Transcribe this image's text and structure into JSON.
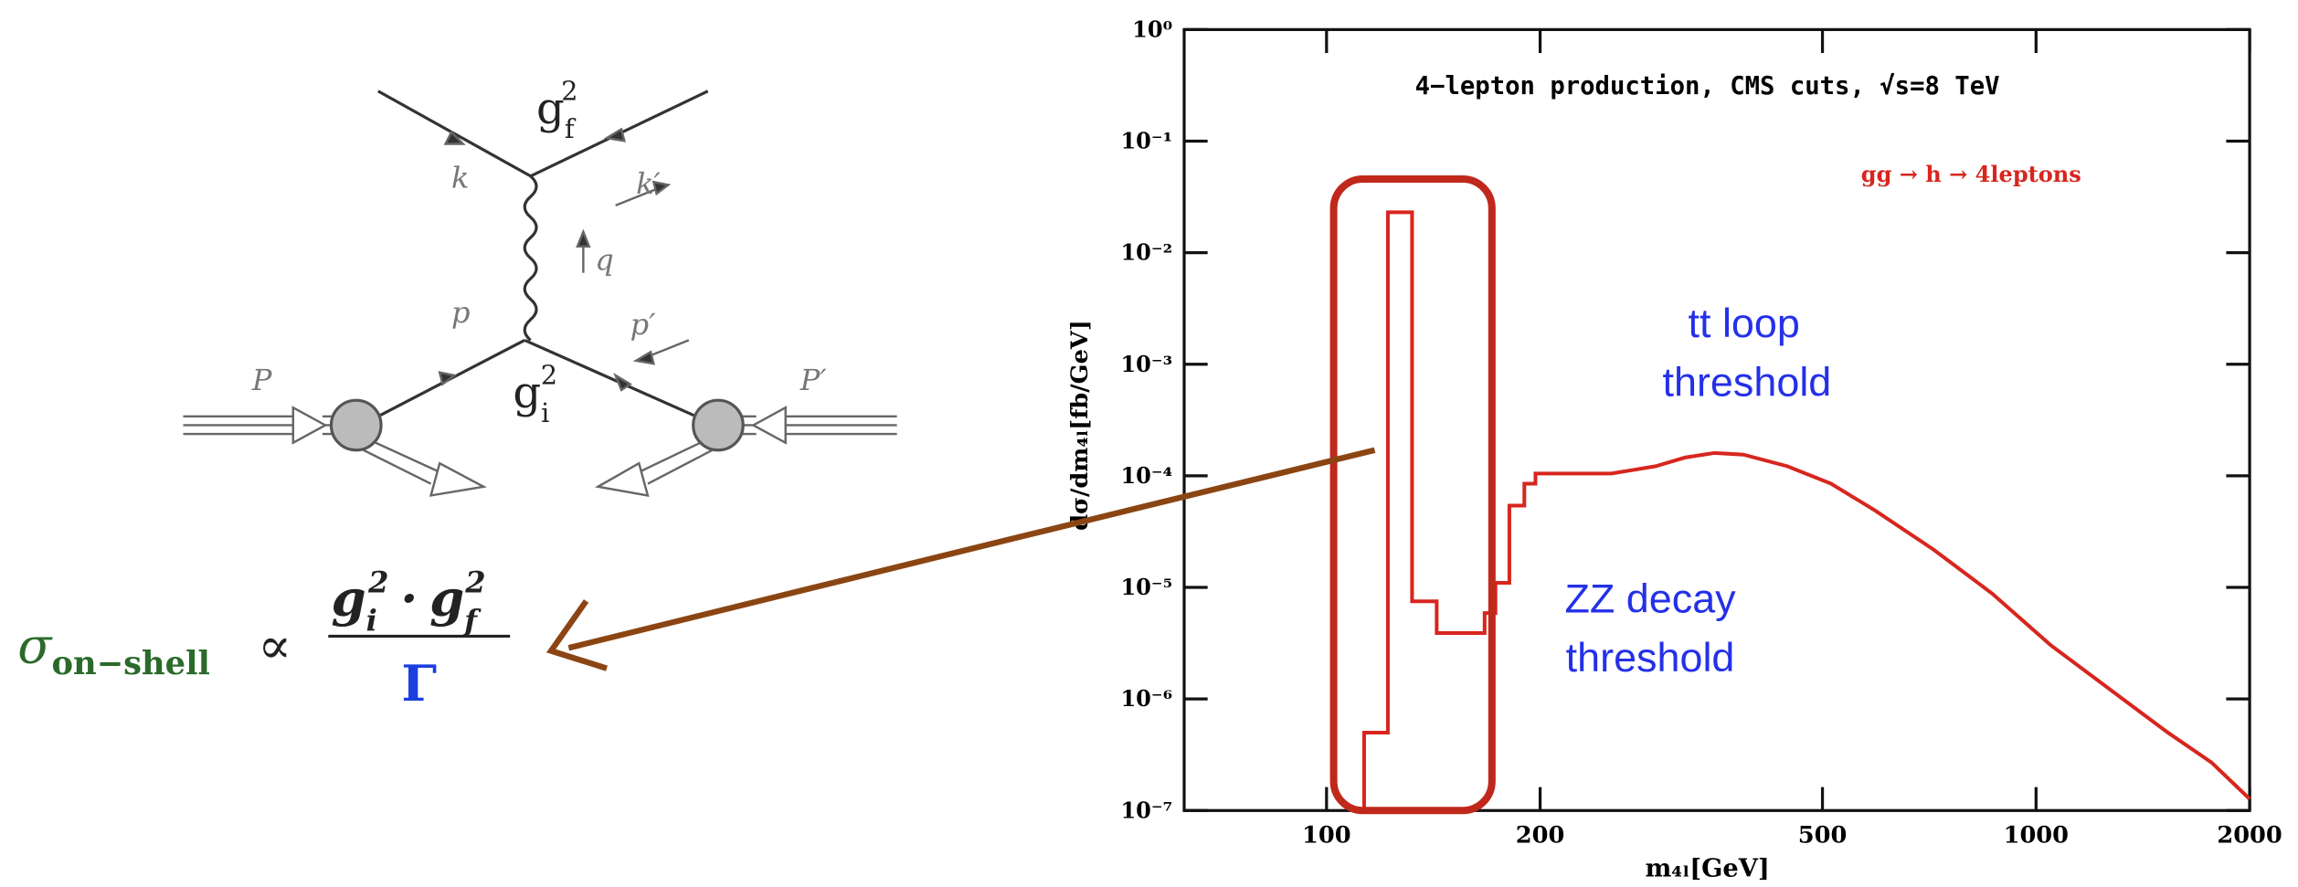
{
  "diagram": {
    "vertex_top": {
      "base": "g",
      "sub": "f",
      "sup": "2"
    },
    "vertex_bottom": {
      "base": "g",
      "sub": "i",
      "sup": "2"
    },
    "momenta": [
      "k",
      "k′",
      "q",
      "p",
      "p′",
      "P",
      "P′"
    ],
    "formula": {
      "sigma": "σ",
      "sigma_sub": "on−shell",
      "prop": "∝",
      "num_left": {
        "base": "g",
        "sub": "i",
        "sup": "2"
      },
      "dot": "·",
      "num_right": {
        "base": "g",
        "sub": "f",
        "sup": "2"
      },
      "denominator": "Γ"
    }
  },
  "chart_data": {
    "type": "line",
    "title": "4−lepton production, CMS cuts, √s=8 TeV",
    "x_label": "m₄ₗ[GeV]",
    "y_label": "dσ/dm₄ₗ[fb/GeV]",
    "annotations": [
      "tt loop",
      "threshold",
      "ZZ decay",
      "threshold"
    ],
    "x": [
      113,
      113,
      122,
      122,
      132,
      132,
      143,
      143,
      167,
      167,
      173,
      173,
      181,
      181,
      190,
      190,
      197,
      197,
      252,
      291,
      320,
      352,
      387,
      446,
      514,
      593,
      717,
      867,
      1048,
      1268,
      1534,
      1767,
      2000
    ],
    "series": [
      {
        "name": "gg → h → 4leptons",
        "color": "#d7261e",
        "values": [
          1e-07,
          5e-07,
          5e-07,
          0.023,
          0.023,
          7.5e-06,
          7.5e-06,
          3.9e-06,
          3.9e-06,
          5.9e-06,
          5.9e-06,
          1.1e-05,
          1.1e-05,
          5.4e-05,
          5.4e-05,
          8.5e-05,
          8.5e-05,
          0.000105,
          0.000105,
          0.000122,
          0.000146,
          0.00016,
          0.000155,
          0.000122,
          8.5e-05,
          4.9e-05,
          2.18e-05,
          8.8e-06,
          3.05e-06,
          1.23e-06,
          5e-07,
          2.7e-07,
          1.27e-07
        ]
      }
    ],
    "log_x": true,
    "log_y": true,
    "xlim": [
      63,
      2000
    ],
    "xticks": [
      100,
      200,
      500,
      1000,
      2000
    ],
    "ylim": [
      1e-07,
      1
    ],
    "yticks": [
      {
        "value": 1e-07,
        "label": "10⁻⁷"
      },
      {
        "value": 1e-06,
        "label": "10⁻⁶"
      },
      {
        "value": 1e-05,
        "label": "10⁻⁵"
      },
      {
        "value": 0.0001,
        "label": "10⁻⁴"
      },
      {
        "value": 0.001,
        "label": "10⁻³"
      },
      {
        "value": 0.01,
        "label": "10⁻²"
      },
      {
        "value": 0.1,
        "label": "10⁻¹"
      },
      {
        "value": 1,
        "label": "10⁰"
      }
    ]
  }
}
